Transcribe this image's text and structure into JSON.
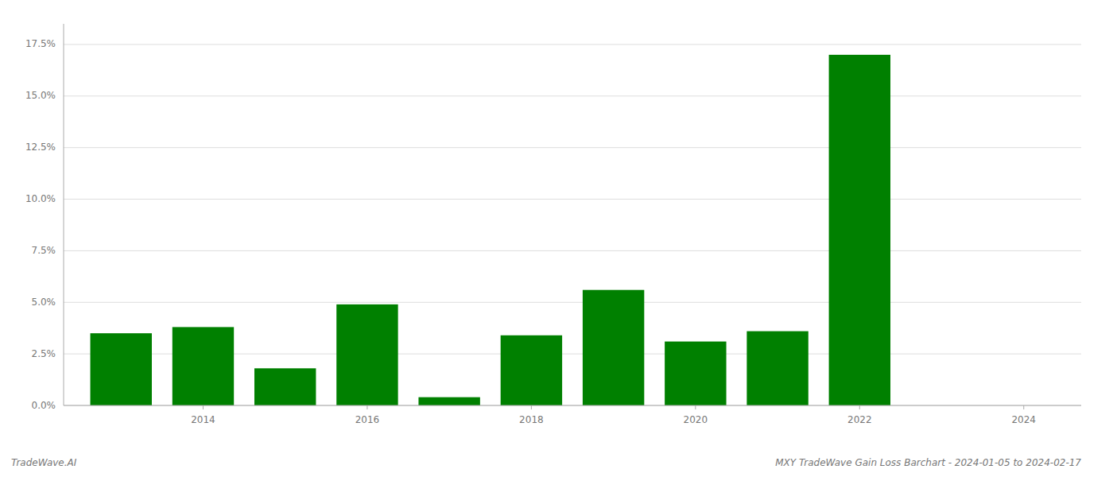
{
  "chart_data": {
    "type": "bar",
    "title": "MXY TradeWave Gain Loss Barchart - 2024-01-05 to 2024-02-17",
    "annotations": [
      "TradeWave.AI"
    ],
    "x": [
      2013,
      2014,
      2015,
      2016,
      2017,
      2018,
      2019,
      2020,
      2021,
      2022,
      2023
    ],
    "values": [
      0.035,
      0.038,
      0.018,
      0.049,
      0.004,
      0.034,
      0.056,
      0.031,
      0.036,
      0.17,
      0.0
    ],
    "color": "#008000",
    "xlim": [
      2012.3,
      2024.7
    ],
    "xticks": [
      2014,
      2016,
      2018,
      2020,
      2022,
      2024
    ],
    "ylim": [
      0.0,
      0.185
    ],
    "yticks": [
      {
        "value": 0.0,
        "label": "0.0%"
      },
      {
        "value": 0.025,
        "label": "2.5%"
      },
      {
        "value": 0.05,
        "label": "5.0%"
      },
      {
        "value": 0.075,
        "label": "7.5%"
      },
      {
        "value": 0.1,
        "label": "10.0%"
      },
      {
        "value": 0.125,
        "label": "12.5%"
      },
      {
        "value": 0.15,
        "label": "15.0%"
      },
      {
        "value": 0.175,
        "label": "17.5%"
      }
    ],
    "grid": true
  }
}
